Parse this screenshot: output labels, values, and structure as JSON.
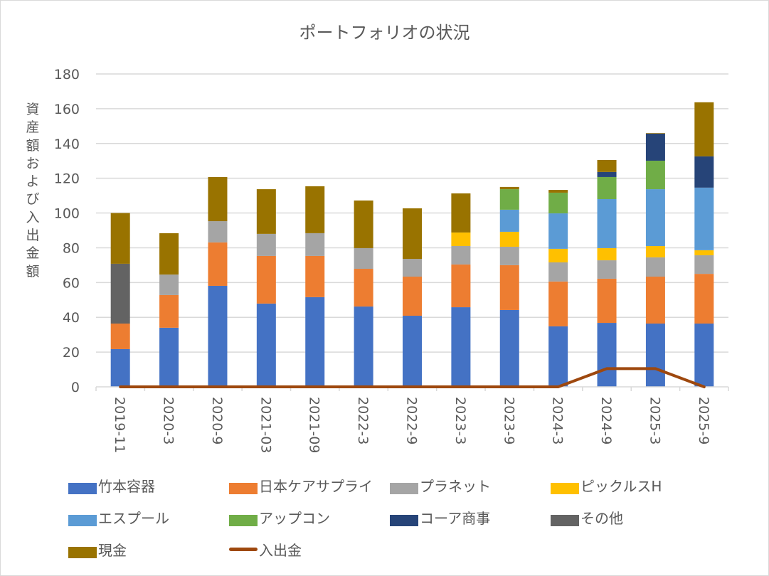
{
  "chart_data": {
    "type": "bar",
    "stacked": true,
    "title": "ポートフォリオの状況",
    "xlabel": "",
    "ylabel": "資産額および入出金額",
    "ylim": [
      0,
      180
    ],
    "yticks": [
      0,
      20,
      40,
      60,
      80,
      100,
      120,
      140,
      160,
      180
    ],
    "grid": true,
    "legend_position": "bottom",
    "categories": [
      "2019-11",
      "2020-3",
      "2020-9",
      "2021-03",
      "2021-09",
      "2022-3",
      "2022-9",
      "2023-3",
      "2023-9",
      "2024-3",
      "2024-9",
      "2025-3",
      "2025-9"
    ],
    "series": [
      {
        "name": "竹本容器",
        "color": "#4472C4",
        "type": "bar",
        "values": [
          21.7,
          34.0,
          58.1,
          47.9,
          51.6,
          46.2,
          40.9,
          45.8,
          44.2,
          34.8,
          36.8,
          36.4,
          36.4
        ]
      },
      {
        "name": "日本ケアサプライ",
        "color": "#ED7D31",
        "type": "bar",
        "values": [
          14.7,
          18.8,
          25.0,
          27.4,
          23.7,
          21.7,
          22.5,
          24.6,
          25.8,
          25.8,
          25.4,
          27.0,
          28.6
        ]
      },
      {
        "name": "プラネット",
        "color": "#A5A5A5",
        "type": "bar",
        "values": [
          0,
          11.8,
          12.2,
          12.7,
          13.1,
          11.9,
          10.2,
          10.6,
          10.6,
          11.0,
          10.6,
          11.1,
          10.7
        ]
      },
      {
        "name": "ピックルスH",
        "color": "#FFC000",
        "type": "bar",
        "values": [
          0,
          0,
          0,
          0,
          0,
          0,
          0,
          7.8,
          8.6,
          7.8,
          7.0,
          6.5,
          2.9
        ]
      },
      {
        "name": "エスプール",
        "color": "#5B9BD5",
        "type": "bar",
        "values": [
          0,
          0,
          0,
          0,
          0,
          0,
          0,
          0,
          12.7,
          20.4,
          28.2,
          32.7,
          36.0
        ]
      },
      {
        "name": "アップコン",
        "color": "#70AD47",
        "type": "bar",
        "values": [
          0,
          0,
          0,
          0,
          0,
          0,
          0,
          0,
          11.8,
          11.9,
          12.7,
          16.4,
          0
        ]
      },
      {
        "name": "コーア商事",
        "color": "#264478",
        "type": "bar",
        "values": [
          0,
          0,
          0,
          0,
          0,
          0,
          0,
          0,
          0,
          0,
          2.9,
          15.6,
          18.0
        ]
      },
      {
        "name": "その他",
        "color": "#636363",
        "type": "bar",
        "values": [
          34.4,
          0,
          0,
          0,
          0,
          0,
          0,
          0,
          0,
          0,
          0,
          0,
          0
        ]
      },
      {
        "name": "現金",
        "color": "#997300",
        "type": "bar",
        "values": [
          29.2,
          23.8,
          25.4,
          25.7,
          27.0,
          27.4,
          29.1,
          22.5,
          1.3,
          1.6,
          6.9,
          0.3,
          31.1
        ]
      },
      {
        "name": "入出金",
        "color": "#9E480E",
        "type": "line",
        "values": [
          0,
          0,
          0,
          0,
          0,
          0,
          0,
          0,
          0,
          0,
          10.5,
          10.5,
          0
        ]
      }
    ]
  }
}
